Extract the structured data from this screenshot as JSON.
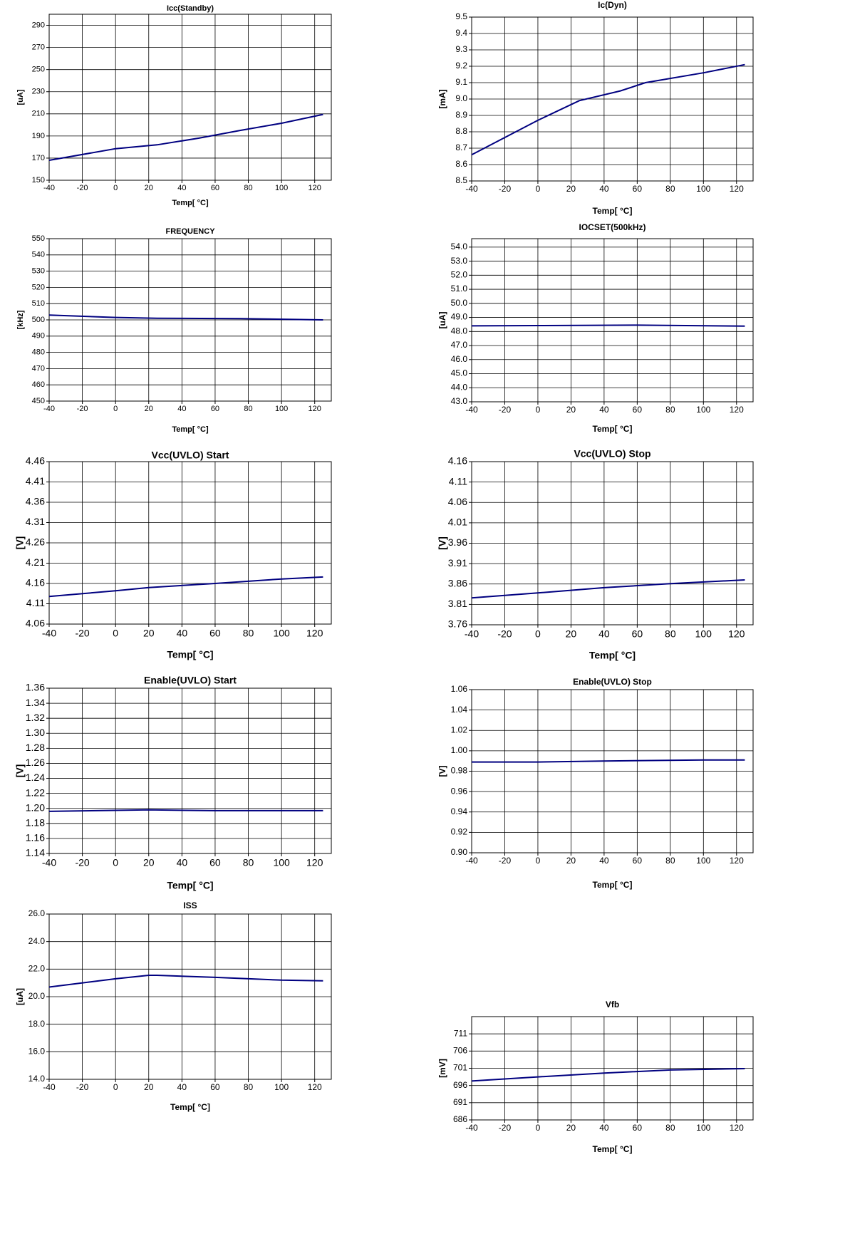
{
  "chart_data": [
    {
      "type": "line",
      "title": "Icc(Standby)",
      "xlabel": "Temp[ °C]",
      "ylabel": "[uA]",
      "color": "#000080",
      "x": [
        -40,
        0,
        25,
        50,
        75,
        100,
        125
      ],
      "values": [
        168,
        178.5,
        182,
        188,
        195,
        201.5,
        209.5
      ],
      "xlim": [
        -40,
        130
      ],
      "xticks": [
        -40,
        -20,
        0,
        20,
        40,
        60,
        80,
        100,
        120
      ],
      "ylim": [
        150,
        300
      ],
      "yticks": [
        150,
        170,
        190,
        210,
        230,
        250,
        270,
        290
      ],
      "grid": true
    },
    {
      "type": "line",
      "title": "Ic(Dyn)",
      "xlabel": "Temp[ °C]",
      "ylabel": "[mA]",
      "color": "#000080",
      "x": [
        -40,
        0,
        25,
        50,
        65,
        100,
        125
      ],
      "values": [
        8.66,
        8.87,
        8.99,
        9.05,
        9.1,
        9.16,
        9.21
      ],
      "xlim": [
        -40,
        130
      ],
      "xticks": [
        -40,
        -20,
        0,
        20,
        40,
        60,
        80,
        100,
        120
      ],
      "ylim": [
        8.5,
        9.5
      ],
      "yticks": [
        8.5,
        8.6,
        8.7,
        8.8,
        8.9,
        {
          "value": 9,
          "label": "9.0"
        },
        9.1,
        9.2,
        9.3,
        9.4,
        9.5
      ],
      "grid": true
    },
    {
      "type": "line",
      "title": "FREQUENCY",
      "xlabel": "Temp[ °C]",
      "ylabel": "[kHz]",
      "color": "#000080",
      "x": [
        -40,
        0,
        25,
        75,
        125
      ],
      "values": [
        503,
        501.5,
        501,
        500.8,
        500
      ],
      "xlim": [
        -40,
        130
      ],
      "xticks": [
        -40,
        -20,
        0,
        20,
        40,
        60,
        80,
        100,
        120
      ],
      "ylim": [
        450,
        550
      ],
      "yticks": [
        450,
        460,
        470,
        480,
        490,
        500,
        510,
        520,
        530,
        540,
        550
      ],
      "grid": true
    },
    {
      "type": "line",
      "title": "IOCSET(500kHz)",
      "xlabel": "Temp[ °C]",
      "ylabel": "[uA]",
      "color": "#000080",
      "x": [
        -40,
        0,
        60,
        125
      ],
      "values": [
        48.4,
        48.42,
        48.45,
        48.38
      ],
      "xlim": [
        -40,
        130
      ],
      "xticks": [
        -40,
        -20,
        0,
        20,
        40,
        60,
        80,
        100,
        120
      ],
      "ylim": [
        43,
        54.6
      ],
      "yticks": [
        {
          "value": 43,
          "label": "43.0"
        },
        {
          "value": 44,
          "label": "44.0"
        },
        {
          "value": 45,
          "label": "45.0"
        },
        {
          "value": 46,
          "label": "46.0"
        },
        {
          "value": 47,
          "label": "47.0"
        },
        {
          "value": 48,
          "label": "48.0"
        },
        {
          "value": 49,
          "label": "49.0"
        },
        {
          "value": 50,
          "label": "50.0"
        },
        {
          "value": 51,
          "label": "51.0"
        },
        {
          "value": 52,
          "label": "52.0"
        },
        {
          "value": 53,
          "label": "53.0"
        },
        {
          "value": 54,
          "label": "54.0"
        }
      ],
      "grid": true
    },
    {
      "type": "line",
      "title": "Vcc(UVLO) Start",
      "xlabel": "Temp[ °C]",
      "ylabel": "[V]",
      "color": "#000080",
      "x": [
        -40,
        0,
        20,
        60,
        100,
        125
      ],
      "values": [
        4.128,
        4.142,
        4.15,
        4.16,
        4.171,
        4.176
      ],
      "xlim": [
        -40,
        130
      ],
      "xticks": [
        -40,
        -20,
        0,
        20,
        40,
        60,
        80,
        100,
        120
      ],
      "ylim": [
        4.06,
        4.46
      ],
      "yticks": [
        4.06,
        4.11,
        4.16,
        4.21,
        4.26,
        4.31,
        4.36,
        4.41,
        4.46
      ],
      "grid": true
    },
    {
      "type": "line",
      "title": "Vcc(UVLO) Stop",
      "xlabel": "Temp[ °C]",
      "ylabel": "[V]",
      "color": "#000080",
      "x": [
        -40,
        0,
        40,
        80,
        125
      ],
      "values": [
        3.826,
        3.838,
        3.851,
        3.861,
        3.87
      ],
      "xlim": [
        -40,
        130
      ],
      "xticks": [
        -40,
        -20,
        0,
        20,
        40,
        60,
        80,
        100,
        120
      ],
      "ylim": [
        3.76,
        4.16
      ],
      "yticks": [
        3.76,
        3.81,
        3.86,
        3.91,
        3.96,
        4.01,
        4.06,
        4.11,
        4.16
      ],
      "grid": true
    },
    {
      "type": "line",
      "title": "Enable(UVLO) Start",
      "xlabel": "Temp[ °C]",
      "ylabel": "[V]",
      "color": "#000080",
      "x": [
        -40,
        20,
        60,
        125
      ],
      "values": [
        1.196,
        1.198,
        1.197,
        1.197
      ],
      "xlim": [
        -40,
        130
      ],
      "xticks": [
        -40,
        -20,
        0,
        20,
        40,
        60,
        80,
        100,
        120
      ],
      "ylim": [
        1.14,
        1.36
      ],
      "yticks": [
        1.14,
        1.16,
        1.18,
        {
          "value": 1.2,
          "label": "1.20"
        },
        1.22,
        1.24,
        1.26,
        1.28,
        {
          "value": 1.3,
          "label": "1.30"
        },
        1.32,
        1.34,
        1.36
      ],
      "grid": true
    },
    {
      "type": "line",
      "title": "Enable(UVLO) Stop",
      "xlabel": "Temp[ °C]",
      "ylabel": "[V]",
      "color": "#000080",
      "x": [
        -40,
        0,
        40,
        100,
        125
      ],
      "values": [
        0.989,
        0.989,
        0.99,
        0.991,
        0.991
      ],
      "xlim": [
        -40,
        130
      ],
      "xticks": [
        -40,
        -20,
        0,
        20,
        40,
        60,
        80,
        100,
        120
      ],
      "ylim": [
        0.9,
        1.06
      ],
      "yticks": [
        {
          "value": 0.9,
          "label": "0.90"
        },
        0.92,
        0.94,
        0.96,
        0.98,
        {
          "value": 1,
          "label": "1.00"
        },
        1.02,
        1.04,
        1.06
      ],
      "grid": true
    },
    {
      "type": "line",
      "title": "ISS",
      "xlabel": "Temp[ °C]",
      "ylabel": "[uA]",
      "color": "#000080",
      "x": [
        -40,
        0,
        20,
        25,
        60,
        100,
        125
      ],
      "values": [
        20.7,
        21.3,
        21.55,
        21.55,
        21.4,
        21.2,
        21.15
      ],
      "xlim": [
        -40,
        130
      ],
      "xticks": [
        -40,
        -20,
        0,
        20,
        40,
        60,
        80,
        100,
        120
      ],
      "ylim": [
        14,
        26
      ],
      "yticks": [
        {
          "value": 14,
          "label": "14.0"
        },
        {
          "value": 16,
          "label": "16.0"
        },
        {
          "value": 18,
          "label": "18.0"
        },
        {
          "value": 20,
          "label": "20.0"
        },
        {
          "value": 22,
          "label": "22.0"
        },
        {
          "value": 24,
          "label": "24.0"
        },
        {
          "value": 26,
          "label": "26.0"
        }
      ],
      "grid": true
    },
    {
      "type": "line",
      "title": "Vfb",
      "xlabel": "Temp[ °C]",
      "ylabel": "[mV]",
      "color": "#000080",
      "x": [
        -40,
        0,
        40,
        80,
        125
      ],
      "values": [
        697.3,
        698.5,
        699.6,
        700.5,
        700.9
      ],
      "xlim": [
        -40,
        130
      ],
      "xticks": [
        -40,
        -20,
        0,
        20,
        40,
        60,
        80,
        100,
        120
      ],
      "ylim": [
        686,
        716
      ],
      "yticks": [
        686,
        691,
        696,
        701,
        706,
        711
      ],
      "grid": true
    }
  ]
}
